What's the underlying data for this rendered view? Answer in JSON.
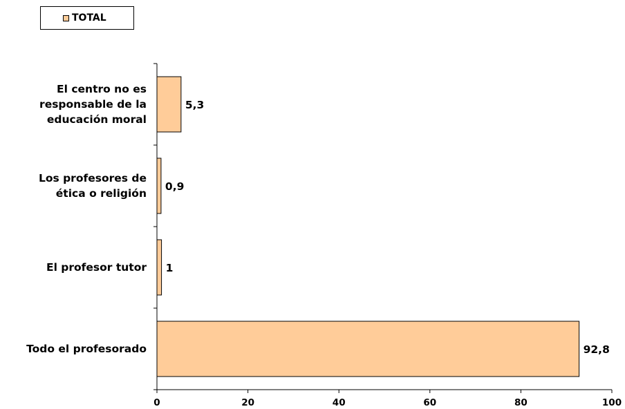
{
  "chart_data": {
    "type": "bar",
    "orientation": "horizontal",
    "categories": [
      [
        "El centro no es",
        "responsable de la",
        "educación moral"
      ],
      [
        "Los profesores de",
        "ética o religión"
      ],
      [
        "El profesor tutor"
      ],
      [
        "Todo el profesorado"
      ]
    ],
    "series": [
      {
        "name": "TOTAL",
        "values": [
          5.3,
          0.9,
          1,
          92.8
        ],
        "labels": [
          "5,3",
          "0,9",
          "1",
          "92,8"
        ]
      }
    ],
    "xlim": [
      0,
      100
    ],
    "xticks": [
      0,
      20,
      40,
      60,
      80,
      100
    ],
    "grid": false,
    "legend_position": "top-left",
    "colors": {
      "bar": "#FFCC99",
      "outline": "#000000"
    }
  }
}
